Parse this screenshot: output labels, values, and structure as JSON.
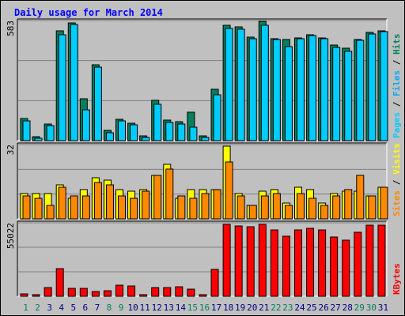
{
  "title": "Daily usage for March 2014",
  "colors": {
    "background": "#c0c0c0",
    "panel": "#c0c0c0",
    "title": "#0000ff",
    "hits": "#00805c",
    "files": "#00ccff",
    "pages": "#00aaff",
    "visits": "#ffff00",
    "sites": "#ff8800",
    "kbytes": "#ff0000",
    "weekday_label": "#000080",
    "weekend_label": "#00805c"
  },
  "chart_data": [
    {
      "type": "bar",
      "panel": "top",
      "y_max_label": "583",
      "legend": [
        "Pages",
        "Files",
        "Hits"
      ],
      "ylim": [
        0,
        583
      ],
      "categories": [
        "1",
        "2",
        "3",
        "4",
        "5",
        "6",
        "7",
        "8",
        "9",
        "10",
        "11",
        "12",
        "13",
        "14",
        "15",
        "16",
        "17",
        "18",
        "19",
        "20",
        "21",
        "22",
        "23",
        "24",
        "25",
        "26",
        "27",
        "28",
        "29",
        "30",
        "31"
      ],
      "weekend_days": [
        1,
        2,
        8,
        9,
        15,
        16,
        22,
        23,
        29,
        30
      ],
      "series": [
        {
          "name": "Hits",
          "values": [
            108,
            20,
            82,
            542,
            580,
            207,
            375,
            50,
            105,
            85,
            22,
            198,
            100,
            92,
            140,
            22,
            254,
            567,
            558,
            511,
            585,
            501,
            496,
            506,
            522,
            506,
            470,
            453,
            499,
            534,
            540
          ]
        },
        {
          "name": "Files",
          "values": [
            98,
            12,
            75,
            520,
            573,
            152,
            360,
            40,
            97,
            78,
            15,
            180,
            90,
            80,
            68,
            15,
            227,
            551,
            549,
            501,
            566,
            498,
            463,
            500,
            516,
            500,
            458,
            440,
            493,
            526,
            538
          ]
        },
        {
          "name": "Pages",
          "values": [
            0,
            0,
            0,
            0,
            0,
            0,
            0,
            0,
            0,
            0,
            0,
            0,
            0,
            0,
            0,
            0,
            0,
            0,
            0,
            0,
            0,
            0,
            0,
            0,
            0,
            0,
            0,
            0,
            0,
            0,
            0
          ]
        }
      ]
    },
    {
      "type": "bar",
      "panel": "middle",
      "y_max_label": "32",
      "legend": [
        "Sites",
        "Visits"
      ],
      "ylim": [
        0,
        32
      ],
      "categories": [
        "1",
        "2",
        "3",
        "4",
        "5",
        "6",
        "7",
        "8",
        "9",
        "10",
        "11",
        "12",
        "13",
        "14",
        "15",
        "16",
        "17",
        "18",
        "19",
        "20",
        "21",
        "22",
        "23",
        "24",
        "25",
        "26",
        "27",
        "28",
        "29",
        "30",
        "31"
      ],
      "series": [
        {
          "name": "Visits",
          "values": [
            11,
            11,
            11,
            15,
            9,
            13,
            18,
            17,
            13,
            12,
            13,
            19,
            24,
            9,
            13,
            13,
            13,
            32,
            11,
            6,
            12,
            13,
            7,
            14,
            13,
            7,
            11,
            12,
            12,
            10,
            14
          ]
        },
        {
          "name": "Sites",
          "values": [
            10,
            9,
            6,
            14,
            10,
            10,
            16,
            15,
            10,
            9,
            12,
            19,
            22,
            10,
            9,
            11,
            13,
            25,
            10,
            6,
            10,
            11,
            6,
            11,
            9,
            6,
            10,
            13,
            19,
            10,
            14
          ]
        }
      ]
    },
    {
      "type": "bar",
      "panel": "bottom",
      "y_max_label": "55022",
      "legend": [
        "KBytes"
      ],
      "ylim": [
        0,
        55022
      ],
      "categories": [
        "1",
        "2",
        "3",
        "4",
        "5",
        "6",
        "7",
        "8",
        "9",
        "10",
        "11",
        "12",
        "13",
        "14",
        "15",
        "16",
        "17",
        "18",
        "19",
        "20",
        "21",
        "22",
        "23",
        "24",
        "25",
        "26",
        "27",
        "28",
        "29",
        "30",
        "31"
      ],
      "series": [
        {
          "name": "KBytes",
          "values": [
            1700,
            1000,
            6500,
            20900,
            6200,
            6000,
            3900,
            4100,
            8200,
            7700,
            200,
            6800,
            6800,
            7200,
            5200,
            200,
            20500,
            55000,
            54000,
            53000,
            55000,
            51000,
            46000,
            50500,
            51700,
            51000,
            45500,
            43000,
            49000,
            54200,
            54700
          ]
        }
      ]
    }
  ]
}
